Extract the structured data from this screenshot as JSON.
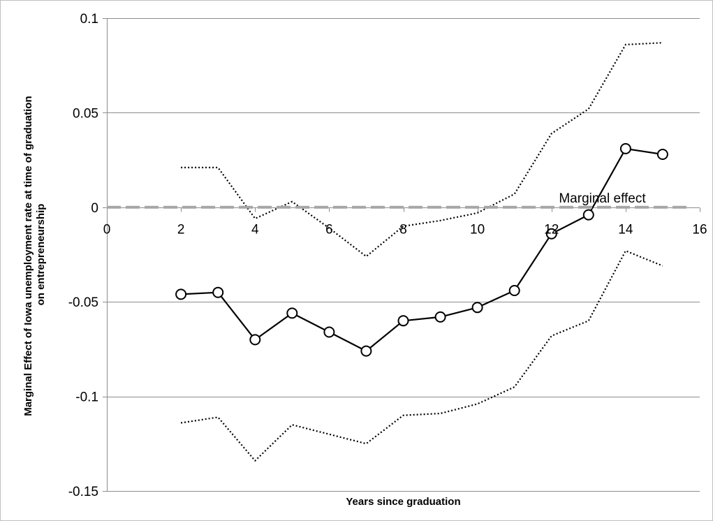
{
  "chart_data": {
    "type": "line",
    "title": "",
    "xlabel": "Years since graduation",
    "ylabel_lines": [
      "Marginal Effect of Iowa unemployment rate at time of graduation",
      "on entrepreneurship"
    ],
    "xlim": [
      0,
      16
    ],
    "ylim": [
      -0.15,
      0.1
    ],
    "x_ticks": [
      0,
      2,
      4,
      6,
      8,
      10,
      12,
      14,
      16
    ],
    "x_tick_labels": [
      "0",
      "2",
      "4",
      "6",
      "8",
      "10",
      "12",
      "14",
      "16"
    ],
    "y_ticks": [
      0.1,
      0.05,
      0,
      -0.05,
      -0.1,
      -0.15
    ],
    "y_tick_labels": [
      "0.1",
      "0.05",
      "0",
      "-0.05",
      "-0.1",
      "-0.15"
    ],
    "grid": "horizontal",
    "series": [
      {
        "role": "estimate",
        "style": "solid-circle-markers",
        "color": "#000000",
        "x": [
          2,
          3,
          4,
          5,
          6,
          7,
          8,
          9,
          10,
          11,
          12,
          13,
          14,
          15
        ],
        "y": [
          -0.046,
          -0.045,
          -0.07,
          -0.056,
          -0.066,
          -0.076,
          -0.06,
          -0.058,
          -0.053,
          -0.044,
          -0.014,
          -0.004,
          0.031,
          0.028
        ]
      },
      {
        "role": "upper-bound",
        "style": "dotted",
        "color": "#000000",
        "x": [
          2,
          3,
          4,
          5,
          6,
          7,
          8,
          9,
          10,
          11,
          12,
          13,
          14,
          15
        ],
        "y": [
          0.021,
          0.021,
          -0.006,
          0.003,
          -0.011,
          -0.026,
          -0.01,
          -0.007,
          -0.003,
          0.007,
          0.039,
          0.052,
          0.086,
          0.087
        ]
      },
      {
        "role": "lower-bound",
        "style": "dotted",
        "color": "#000000",
        "x": [
          2,
          3,
          4,
          5,
          6,
          7,
          8,
          9,
          10,
          11,
          12,
          13,
          14,
          15
        ],
        "y": [
          -0.114,
          -0.111,
          -0.134,
          -0.115,
          -0.12,
          -0.125,
          -0.11,
          -0.109,
          -0.104,
          -0.095,
          -0.068,
          -0.06,
          -0.023,
          -0.031
        ]
      },
      {
        "name": "Marginal effect",
        "role": "zero-reference",
        "style": "dashed-gray",
        "color": "#a6a6a6",
        "x": [
          0,
          16
        ],
        "y": [
          0,
          0
        ]
      }
    ]
  }
}
